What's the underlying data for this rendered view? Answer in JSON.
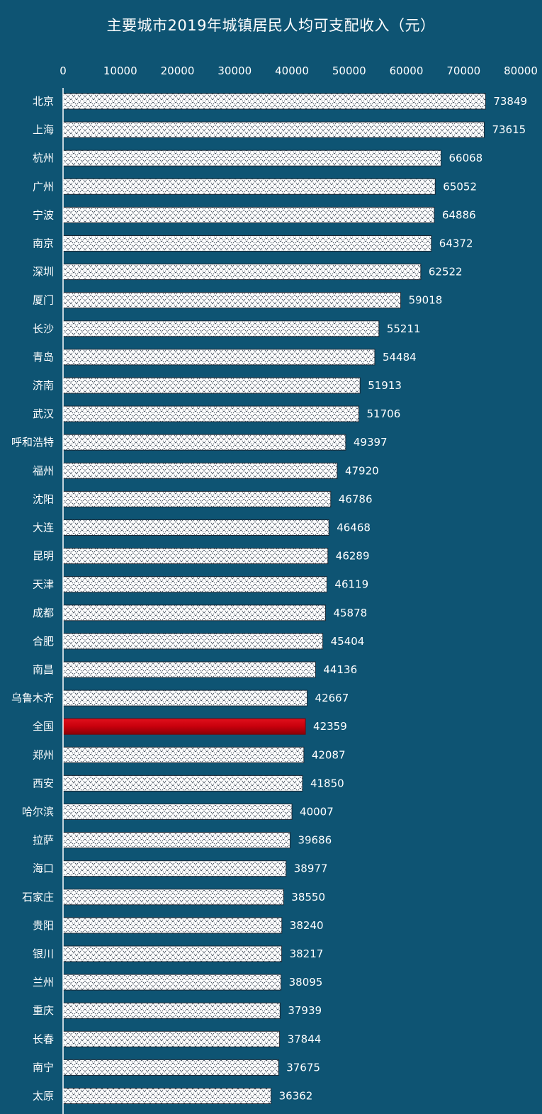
{
  "chart_data": {
    "type": "bar",
    "orientation": "horizontal",
    "title": "主要城市2019年城镇居民人均可支配收入（元）",
    "xlim": [
      0,
      80000
    ],
    "x_ticks": [
      "0",
      "10000",
      "20000",
      "30000",
      "40000",
      "50000",
      "60000",
      "70000",
      "80000"
    ],
    "grid": false,
    "categories": [
      "北京",
      "上海",
      "杭州",
      "广州",
      "宁波",
      "南京",
      "深圳",
      "厦门",
      "长沙",
      "青岛",
      "济南",
      "武汉",
      "呼和浩特",
      "福州",
      "沈阳",
      "大连",
      "昆明",
      "天津",
      "成都",
      "合肥",
      "南昌",
      "乌鲁木齐",
      "全国",
      "郑州",
      "西安",
      "哈尔滨",
      "拉萨",
      "海口",
      "石家庄",
      "贵阳",
      "银川",
      "兰州",
      "重庆",
      "长春",
      "南宁",
      "太原"
    ],
    "values": [
      73849,
      73615,
      66068,
      65052,
      64886,
      64372,
      62522,
      59018,
      55211,
      54484,
      51913,
      51706,
      49397,
      47920,
      46786,
      46468,
      46289,
      46119,
      45878,
      45404,
      44136,
      42667,
      42359,
      42087,
      41850,
      40007,
      39686,
      38977,
      38550,
      38240,
      38217,
      38095,
      37939,
      37844,
      37675,
      36362
    ],
    "highlight_category": "全国",
    "colors": {
      "background": "#0e5473",
      "bar_fill": "#ffffff",
      "bar_pattern": "#3a4654",
      "highlight": "#c8000c",
      "text": "#ffffff"
    }
  }
}
